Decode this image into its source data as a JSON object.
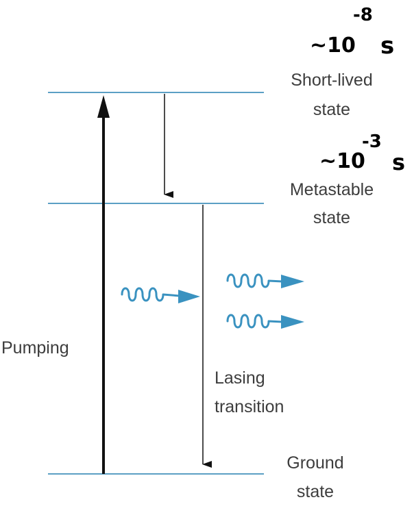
{
  "levels": {
    "short_lived": {
      "line1": "Short-lived",
      "line2": "state"
    },
    "metastable": {
      "line1": "Metastable",
      "line2": "state"
    },
    "ground": {
      "line1": "Ground",
      "line2": "state"
    }
  },
  "labels": {
    "pumping": "Pumping",
    "lasing_line1": "Lasing",
    "lasing_line2": "transition"
  },
  "annotations": {
    "short_lifetime": {
      "prefix": "~10",
      "exponent": "-8",
      "unit": "s"
    },
    "metastable_lifetime": {
      "prefix": "~10",
      "exponent": "-3",
      "unit": "s"
    }
  },
  "colors": {
    "level_line": "#5b9fc4",
    "photon": "#3a92c0",
    "arrow": "#111111",
    "label_text": "#3d3d3d",
    "handwriting": "#000000"
  }
}
